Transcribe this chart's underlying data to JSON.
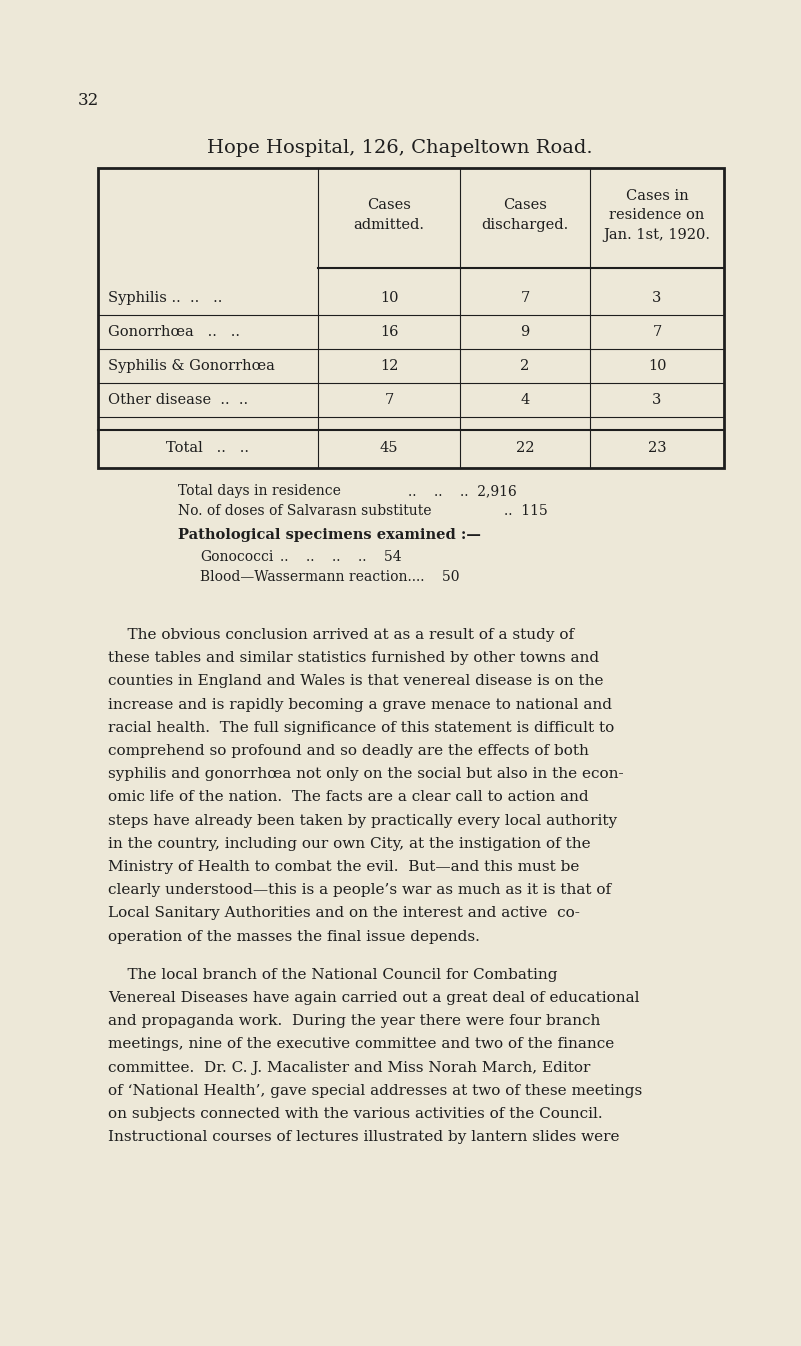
{
  "bg_color": "#ede8d8",
  "text_color": "#1e1e1e",
  "page_number": "32",
  "title_parts": [
    {
      "text": "H",
      "size": 14
    },
    {
      "text": "OPE ",
      "size": 11
    },
    {
      "text": "H",
      "size": 14
    },
    {
      "text": "OSPITAL, 126, ",
      "size": 11
    },
    {
      "text": "C",
      "size": 14
    },
    {
      "text": "HAPELTOWN ",
      "size": 11
    },
    {
      "text": "R",
      "size": 14
    },
    {
      "text": "OAD.",
      "size": 11
    }
  ],
  "table_col_labels": [
    "Cases\nadmitted.",
    "Cases\ndischarged.",
    "Cases in\nresidence on\nJan. 1st, 1920."
  ],
  "table_row_labels": [
    "Syphilis ..  ..   ..",
    "Gonorrhœa   ..   ..",
    "Syphilis & Gonorrhœa",
    "Other disease  ..  ..",
    "Total   ..   .."
  ],
  "table_data": [
    [
      "10",
      "7",
      "3"
    ],
    [
      "16",
      "9",
      "7"
    ],
    [
      "12",
      "2",
      "10"
    ],
    [
      "7",
      "4",
      "3"
    ],
    [
      "45",
      "22",
      "23"
    ]
  ],
  "stats_text": [
    "Total days in residence  ..  ..  ..  2,916",
    "No. of doses of Salvarasn substitute  ..  115"
  ],
  "path_bold": "Pathological specimens examined :—",
  "path_items": [
    "Gonococci  ..  ..  ..  ..  54",
    "Blood—Wassermann reaction..  ..  50"
  ],
  "para1_lines": [
    "    The obvious conclusion arrived at as a result of a study of",
    "these tables and similar statistics furnished by other towns and",
    "counties in England and Wales is that venereal disease is on the",
    "increase and is rapidly becoming a grave menace to national and",
    "racial health.  The full significance of this statement is difficult to",
    "comprehend so profound and so deadly are the effects of both",
    "syphilis and gonorrhœa not only on the social but also in the econ-",
    "omic life of the nation.  The facts are a clear call to action and",
    "steps have already been taken by practically every local authority",
    "in the country, including our own City, at the instigation of the",
    "Ministry of Health to combat the evil.  But—and this must be",
    "clearly understood—this is a people’s war as much as it is that of",
    "Local Sanitary Authorities and on the interest and active  co-",
    "operation of the masses the final issue depends."
  ],
  "para2_lines": [
    "    The local branch of the National Council for Combating",
    "Venereal Diseases have again carried out a great deal of educational",
    "and propaganda work.  During the year there were four branch",
    "meetings, nine of the executive committee and two of the finance",
    "committee.  Dr. C. J. Macalister and Miss Norah March, Editor",
    "of ‘National Health’, gave special addresses at two of these meetings",
    "on subjects connected with the various activities of the Council.",
    "Instructional courses of lectures illustrated by lantern slides were"
  ]
}
